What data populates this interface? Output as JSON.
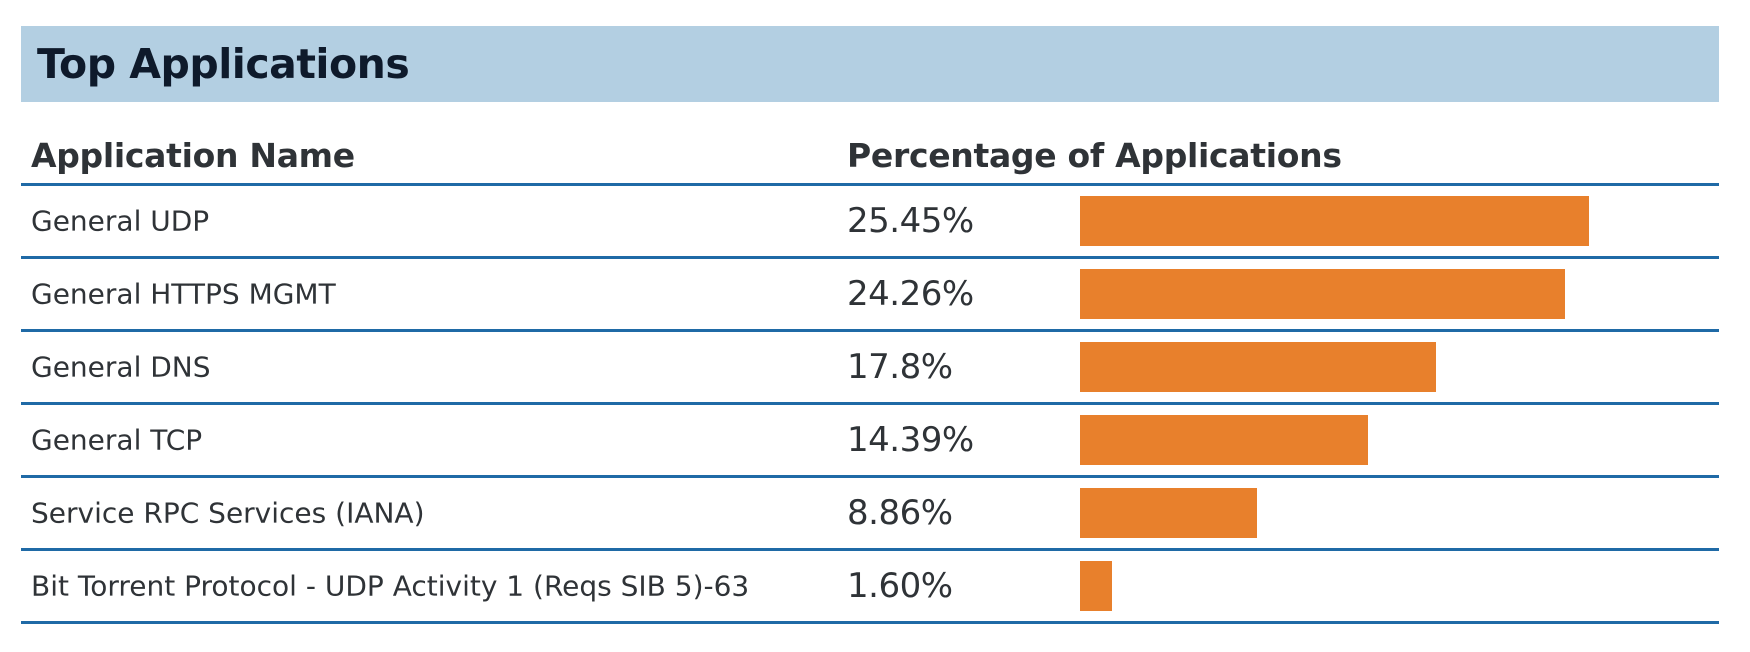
{
  "title": "Top Applications",
  "columns": {
    "name": "Application Name",
    "percentage": "Percentage of Applications"
  },
  "colors": {
    "header_bg": "#b3cfe2",
    "title_text": "#0e1a2b",
    "bar": "#e8802c",
    "divider": "#1f6aa6"
  },
  "chart_data": {
    "type": "bar",
    "title": "Top Applications",
    "orientation": "horizontal",
    "categories": [
      "General UDP",
      "General HTTPS MGMT",
      "General DNS",
      "General TCP",
      "Service RPC Services (IANA)",
      "Bit Torrent Protocol - UDP Activity 1 (Reqs SIB 5)-63"
    ],
    "values": [
      25.45,
      24.26,
      17.8,
      14.39,
      8.86,
      1.6
    ],
    "value_labels": [
      "25.45%",
      "24.26%",
      "17.8%",
      "14.39%",
      "8.86%",
      "1.60%"
    ],
    "xlabel": "Percentage of Applications",
    "ylabel": "Application Name",
    "xlim": [
      0,
      32
    ]
  }
}
